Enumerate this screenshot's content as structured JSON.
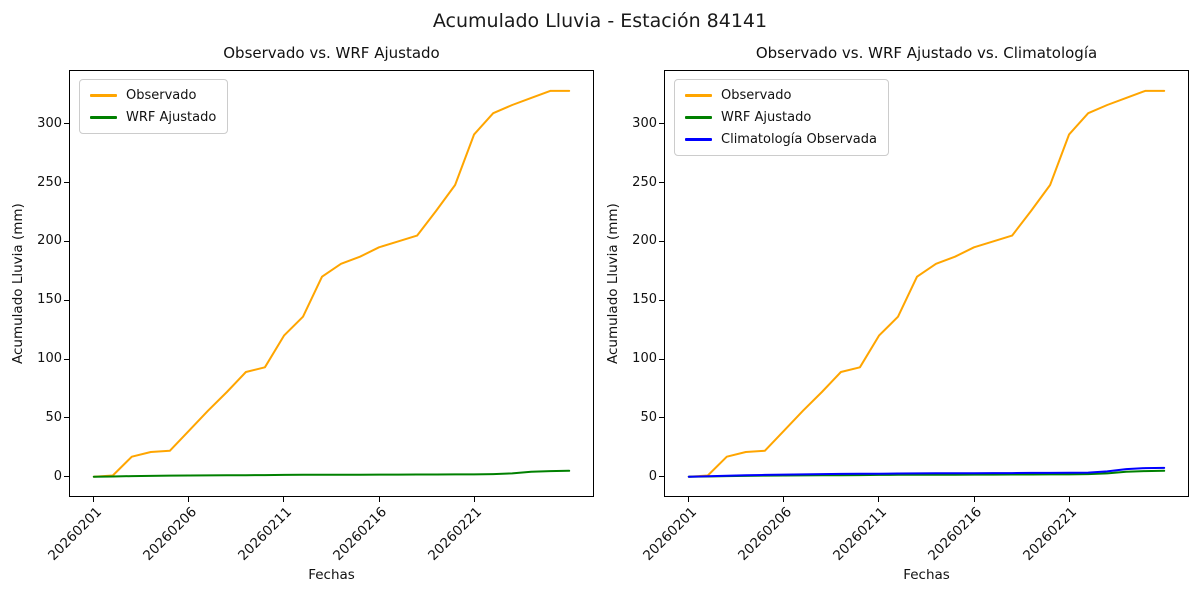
{
  "figure": {
    "suptitle": "Acumulado Lluvia - Estación 84141",
    "background_color": "#ffffff",
    "text_color": "#000000"
  },
  "chart_data": [
    {
      "type": "line",
      "title": "Observado vs. WRF Ajustado",
      "xlabel": "Fechas",
      "ylabel": "Acumulado Lluvia (mm)",
      "grid": false,
      "legend_position": "upper left",
      "x": [
        "20260201",
        "20260202",
        "20260203",
        "20260204",
        "20260205",
        "20260206",
        "20260207",
        "20260208",
        "20260209",
        "20260210",
        "20260211",
        "20260212",
        "20260213",
        "20260214",
        "20260215",
        "20260216",
        "20260217",
        "20260218",
        "20260219",
        "20260220",
        "20260221",
        "20260222",
        "20260223",
        "20260224",
        "20260225",
        "20260226"
      ],
      "x_tick_labels": [
        "20260201",
        "20260206",
        "20260211",
        "20260216",
        "20260221"
      ],
      "x_tick_indices": [
        0,
        5,
        10,
        15,
        20
      ],
      "y_ticks": [
        0,
        50,
        100,
        150,
        200,
        250,
        300
      ],
      "ylim": [
        -16.4,
        344.9
      ],
      "x_margin": 1.25,
      "series": [
        {
          "name": "Observado",
          "color": "#FFA500",
          "values": [
            0,
            1,
            17,
            21,
            22,
            39,
            56,
            72,
            89,
            93,
            120,
            136,
            170,
            181,
            187,
            195,
            200,
            205,
            226,
            248,
            291,
            309,
            316,
            322,
            328,
            328
          ]
        },
        {
          "name": "WRF Ajustado",
          "color": "#008000",
          "values": [
            0,
            0.2,
            0.5,
            0.7,
            0.9,
            1,
            1.1,
            1.2,
            1.3,
            1.4,
            1.5,
            1.6,
            1.6,
            1.7,
            1.7,
            1.8,
            1.8,
            1.9,
            1.9,
            2,
            2,
            2.2,
            2.8,
            4.2,
            4.8,
            5
          ]
        }
      ]
    },
    {
      "type": "line",
      "title": "Observado vs. WRF Ajustado vs. Climatología",
      "xlabel": "Fechas",
      "ylabel": "Acumulado Lluvia (mm)",
      "grid": false,
      "legend_position": "upper left",
      "x": [
        "20260201",
        "20260202",
        "20260203",
        "20260204",
        "20260205",
        "20260206",
        "20260207",
        "20260208",
        "20260209",
        "20260210",
        "20260211",
        "20260212",
        "20260213",
        "20260214",
        "20260215",
        "20260216",
        "20260217",
        "20260218",
        "20260219",
        "20260220",
        "20260221",
        "20260222",
        "20260223",
        "20260224",
        "20260225",
        "20260226"
      ],
      "x_tick_labels": [
        "20260201",
        "20260206",
        "20260211",
        "20260216",
        "20260221"
      ],
      "x_tick_indices": [
        0,
        5,
        10,
        15,
        20
      ],
      "y_ticks": [
        0,
        50,
        100,
        150,
        200,
        250,
        300
      ],
      "ylim": [
        -16.4,
        344.9
      ],
      "x_margin": 1.25,
      "series": [
        {
          "name": "Observado",
          "color": "#FFA500",
          "values": [
            0,
            1,
            17,
            21,
            22,
            39,
            56,
            72,
            89,
            93,
            120,
            136,
            170,
            181,
            187,
            195,
            200,
            205,
            226,
            248,
            291,
            309,
            316,
            322,
            328,
            328
          ]
        },
        {
          "name": "WRF Ajustado",
          "color": "#008000",
          "values": [
            0,
            0.2,
            0.5,
            0.7,
            0.9,
            1,
            1.1,
            1.2,
            1.3,
            1.4,
            1.5,
            1.6,
            1.6,
            1.7,
            1.7,
            1.8,
            1.8,
            1.9,
            1.9,
            2,
            2,
            2.2,
            2.8,
            4.2,
            4.8,
            5
          ]
        },
        {
          "name": "Climatología Observada",
          "color": "#0000FF",
          "values": [
            0,
            0.4,
            0.8,
            1.2,
            1.5,
            1.8,
            2,
            2.2,
            2.4,
            2.5,
            2.6,
            2.7,
            2.8,
            2.9,
            3,
            3,
            3.1,
            3.1,
            3.2,
            3.2,
            3.3,
            3.5,
            4.5,
            6.5,
            7.3,
            7.5
          ]
        }
      ]
    }
  ]
}
